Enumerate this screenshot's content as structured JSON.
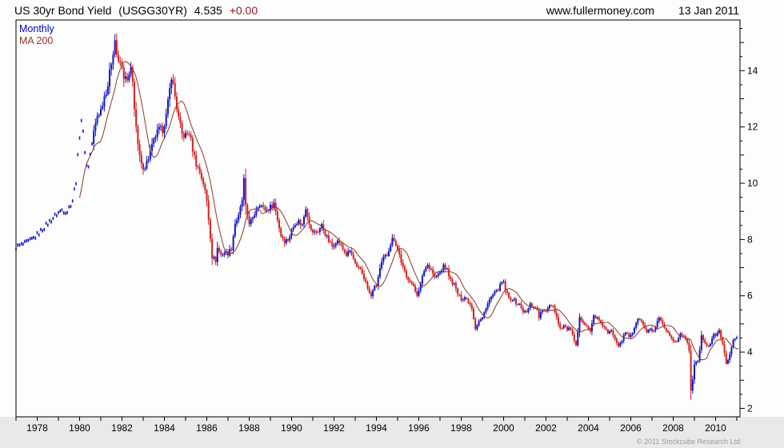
{
  "header": {
    "name": "US 30yr Bond Yield",
    "ticker": "(USGG30YR)",
    "price": "4.535",
    "change": "+0.00",
    "website": "www.fullermoney.com",
    "date": "13 Jan 2011"
  },
  "legend": {
    "series1": "Monthly",
    "series2": "MA 200"
  },
  "footer": {
    "copyright": "© 2011 Stockcube Research Ltd"
  },
  "colors": {
    "up": "#1414c8",
    "down": "#d42020",
    "ma": "#8a3a28",
    "axis": "#000000",
    "band": "#e9e9e9",
    "legend_monthly": "#0000cc",
    "legend_ma": "#993322",
    "change": "#8b1a1a"
  },
  "chart_data": {
    "type": "candlestick",
    "title": "US 30yr Bond Yield (USGG30YR)",
    "frequency": "Monthly",
    "overlay": "MA 200",
    "last_price": 4.535,
    "x_range": [
      1977.0,
      2011.15
    ],
    "y_range": [
      1.7,
      15.8
    ],
    "x_ticks": [
      1978,
      1980,
      1982,
      1984,
      1986,
      1988,
      1990,
      1992,
      1994,
      1996,
      1998,
      2000,
      2002,
      2004,
      2006,
      2008,
      2010
    ],
    "y_ticks": [
      2,
      4,
      6,
      8,
      10,
      12,
      14
    ],
    "grid": false,
    "legend_position": "top-left",
    "dots_until": 1980.62,
    "ma_start": 1980.0,
    "ma_window_months": 9,
    "last_point": 2011.084,
    "yield_anchors": [
      [
        1977.0,
        7.7
      ],
      [
        1977.25,
        7.78
      ],
      [
        1977.5,
        7.85
      ],
      [
        1977.75,
        7.95
      ],
      [
        1978.0,
        8.1
      ],
      [
        1978.25,
        8.3
      ],
      [
        1978.5,
        8.5
      ],
      [
        1978.75,
        8.7
      ],
      [
        1979.0,
        8.9
      ],
      [
        1979.25,
        9.05
      ],
      [
        1979.5,
        9.0
      ],
      [
        1979.75,
        9.4
      ],
      [
        1979.92,
        10.1
      ],
      [
        1980.08,
        11.7
      ],
      [
        1980.17,
        12.3
      ],
      [
        1980.33,
        11.2
      ],
      [
        1980.45,
        10.4
      ],
      [
        1980.58,
        11.0
      ],
      [
        1980.75,
        11.8
      ],
      [
        1980.92,
        12.4
      ],
      [
        1981.08,
        12.6
      ],
      [
        1981.25,
        13.1
      ],
      [
        1981.42,
        13.5
      ],
      [
        1981.58,
        14.3
      ],
      [
        1981.75,
        15.1
      ],
      [
        1981.83,
        14.6
      ],
      [
        1981.92,
        14.2
      ],
      [
        1982.0,
        14.3
      ],
      [
        1982.17,
        13.8
      ],
      [
        1982.33,
        13.6
      ],
      [
        1982.5,
        14.0
      ],
      [
        1982.58,
        13.6
      ],
      [
        1982.67,
        12.7
      ],
      [
        1982.83,
        11.3
      ],
      [
        1983.0,
        10.6
      ],
      [
        1983.17,
        10.6
      ],
      [
        1983.33,
        10.9
      ],
      [
        1983.5,
        11.3
      ],
      [
        1983.67,
        11.7
      ],
      [
        1983.83,
        11.9
      ],
      [
        1984.0,
        11.9
      ],
      [
        1984.17,
        12.4
      ],
      [
        1984.33,
        13.3
      ],
      [
        1984.42,
        13.85
      ],
      [
        1984.58,
        13.1
      ],
      [
        1984.75,
        12.3
      ],
      [
        1984.92,
        11.7
      ],
      [
        1985.08,
        11.7
      ],
      [
        1985.25,
        11.8
      ],
      [
        1985.42,
        11.2
      ],
      [
        1985.58,
        10.7
      ],
      [
        1985.75,
        10.4
      ],
      [
        1985.92,
        10.0
      ],
      [
        1986.08,
        9.4
      ],
      [
        1986.25,
        8.1
      ],
      [
        1986.33,
        7.4
      ],
      [
        1986.5,
        7.25
      ],
      [
        1986.58,
        7.7
      ],
      [
        1986.75,
        7.45
      ],
      [
        1986.92,
        7.55
      ],
      [
        1987.08,
        7.5
      ],
      [
        1987.25,
        7.7
      ],
      [
        1987.42,
        8.6
      ],
      [
        1987.58,
        8.8
      ],
      [
        1987.75,
        9.4
      ],
      [
        1987.83,
        10.15
      ],
      [
        1987.92,
        9.1
      ],
      [
        1988.08,
        8.6
      ],
      [
        1988.25,
        8.7
      ],
      [
        1988.42,
        9.1
      ],
      [
        1988.58,
        9.3
      ],
      [
        1988.75,
        9.1
      ],
      [
        1988.92,
        9.05
      ],
      [
        1989.08,
        9.15
      ],
      [
        1989.25,
        9.3
      ],
      [
        1989.42,
        8.7
      ],
      [
        1989.58,
        8.15
      ],
      [
        1989.75,
        7.95
      ],
      [
        1989.92,
        8.0
      ],
      [
        1990.08,
        8.3
      ],
      [
        1990.25,
        8.6
      ],
      [
        1990.42,
        8.65
      ],
      [
        1990.58,
        8.5
      ],
      [
        1990.75,
        9.15
      ],
      [
        1990.83,
        8.9
      ],
      [
        1991.0,
        8.3
      ],
      [
        1991.17,
        8.25
      ],
      [
        1991.33,
        8.3
      ],
      [
        1991.5,
        8.5
      ],
      [
        1991.67,
        8.2
      ],
      [
        1991.83,
        7.95
      ],
      [
        1992.0,
        7.75
      ],
      [
        1992.17,
        7.95
      ],
      [
        1992.33,
        7.9
      ],
      [
        1992.5,
        7.65
      ],
      [
        1992.67,
        7.45
      ],
      [
        1992.83,
        7.6
      ],
      [
        1993.0,
        7.3
      ],
      [
        1993.17,
        6.95
      ],
      [
        1993.33,
        6.95
      ],
      [
        1993.5,
        6.65
      ],
      [
        1993.67,
        6.25
      ],
      [
        1993.83,
        5.95
      ],
      [
        1993.92,
        6.25
      ],
      [
        1994.08,
        6.35
      ],
      [
        1994.25,
        6.95
      ],
      [
        1994.42,
        7.35
      ],
      [
        1994.58,
        7.45
      ],
      [
        1994.75,
        7.85
      ],
      [
        1994.88,
        8.1
      ],
      [
        1995.0,
        7.85
      ],
      [
        1995.17,
        7.45
      ],
      [
        1995.33,
        7.0
      ],
      [
        1995.5,
        6.65
      ],
      [
        1995.67,
        6.55
      ],
      [
        1995.83,
        6.3
      ],
      [
        1996.0,
        6.05
      ],
      [
        1996.17,
        6.4
      ],
      [
        1996.33,
        6.9
      ],
      [
        1996.5,
        7.1
      ],
      [
        1996.67,
        6.95
      ],
      [
        1996.83,
        6.65
      ],
      [
        1997.0,
        6.75
      ],
      [
        1997.17,
        6.9
      ],
      [
        1997.25,
        7.1
      ],
      [
        1997.42,
        6.9
      ],
      [
        1997.58,
        6.55
      ],
      [
        1997.75,
        6.4
      ],
      [
        1997.92,
        6.05
      ],
      [
        1998.08,
        5.9
      ],
      [
        1998.25,
        5.95
      ],
      [
        1998.42,
        5.8
      ],
      [
        1998.58,
        5.6
      ],
      [
        1998.75,
        4.85
      ],
      [
        1998.92,
        5.1
      ],
      [
        1999.08,
        5.2
      ],
      [
        1999.25,
        5.6
      ],
      [
        1999.42,
        5.85
      ],
      [
        1999.58,
        6.05
      ],
      [
        1999.75,
        6.15
      ],
      [
        1999.92,
        6.35
      ],
      [
        2000.05,
        6.55
      ],
      [
        2000.17,
        6.2
      ],
      [
        2000.33,
        5.9
      ],
      [
        2000.5,
        5.9
      ],
      [
        2000.67,
        5.75
      ],
      [
        2000.83,
        5.7
      ],
      [
        2001.0,
        5.45
      ],
      [
        2001.17,
        5.4
      ],
      [
        2001.33,
        5.7
      ],
      [
        2001.5,
        5.6
      ],
      [
        2001.67,
        5.5
      ],
      [
        2001.75,
        5.25
      ],
      [
        2001.92,
        5.5
      ],
      [
        2002.08,
        5.4
      ],
      [
        2002.25,
        5.7
      ],
      [
        2002.42,
        5.65
      ],
      [
        2002.58,
        5.25
      ],
      [
        2002.75,
        4.85
      ],
      [
        2002.92,
        4.95
      ],
      [
        2003.08,
        4.8
      ],
      [
        2003.25,
        4.85
      ],
      [
        2003.42,
        4.35
      ],
      [
        2003.5,
        4.2
      ],
      [
        2003.58,
        4.7
      ],
      [
        2003.67,
        5.2
      ],
      [
        2003.83,
        5.1
      ],
      [
        2004.0,
        4.95
      ],
      [
        2004.17,
        4.7
      ],
      [
        2004.33,
        5.3
      ],
      [
        2004.5,
        5.2
      ],
      [
        2004.67,
        5.0
      ],
      [
        2004.83,
        4.9
      ],
      [
        2005.0,
        4.65
      ],
      [
        2005.17,
        4.75
      ],
      [
        2005.33,
        4.5
      ],
      [
        2005.5,
        4.25
      ],
      [
        2005.67,
        4.45
      ],
      [
        2005.83,
        4.7
      ],
      [
        2006.0,
        4.55
      ],
      [
        2006.17,
        4.7
      ],
      [
        2006.33,
        5.05
      ],
      [
        2006.5,
        5.2
      ],
      [
        2006.67,
        4.95
      ],
      [
        2006.83,
        4.7
      ],
      [
        2007.0,
        4.8
      ],
      [
        2007.17,
        4.75
      ],
      [
        2007.42,
        5.2
      ],
      [
        2007.58,
        4.95
      ],
      [
        2007.75,
        4.75
      ],
      [
        2007.92,
        4.55
      ],
      [
        2008.08,
        4.35
      ],
      [
        2008.25,
        4.4
      ],
      [
        2008.42,
        4.65
      ],
      [
        2008.58,
        4.55
      ],
      [
        2008.75,
        4.35
      ],
      [
        2008.833,
        4.05
      ],
      [
        2008.917,
        2.62
      ],
      [
        2009.0,
        3.05
      ],
      [
        2009.083,
        3.6
      ],
      [
        2009.25,
        3.7
      ],
      [
        2009.417,
        4.55
      ],
      [
        2009.583,
        4.35
      ],
      [
        2009.75,
        4.2
      ],
      [
        2009.917,
        4.45
      ],
      [
        2010.0,
        4.6
      ],
      [
        2010.167,
        4.65
      ],
      [
        2010.25,
        4.75
      ],
      [
        2010.417,
        4.3
      ],
      [
        2010.5,
        3.95
      ],
      [
        2010.583,
        3.55
      ],
      [
        2010.667,
        3.75
      ],
      [
        2010.75,
        3.95
      ],
      [
        2010.833,
        4.15
      ],
      [
        2010.917,
        4.4
      ],
      [
        2011.0,
        4.45
      ],
      [
        2011.084,
        4.535
      ]
    ]
  }
}
